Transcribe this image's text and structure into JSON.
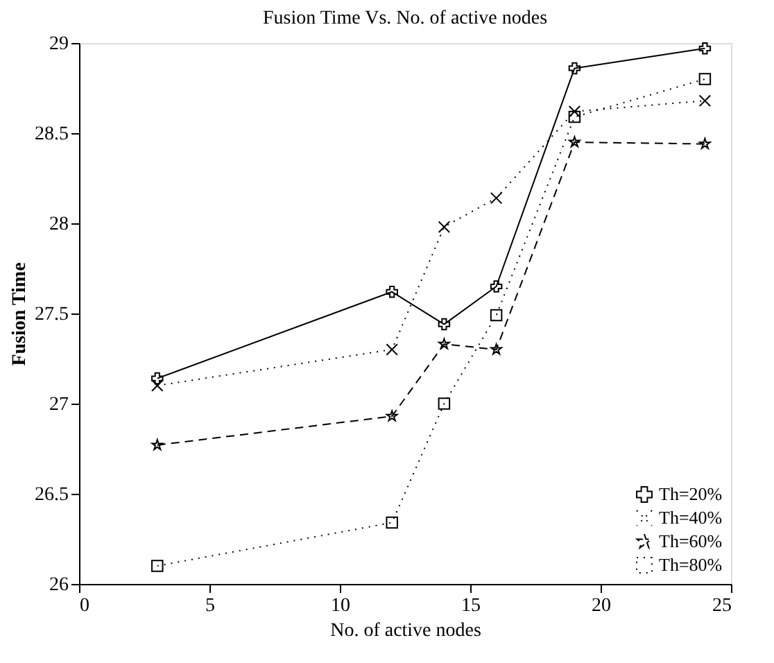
{
  "chart_data": {
    "type": "line",
    "title": "Fusion Time Vs. No. of active nodes",
    "xlabel": "No. of active nodes",
    "ylabel": "Fusion Time",
    "series": [
      {
        "name": "Th=20%",
        "color": "#000000",
        "marker": "cross",
        "line_style": "solid",
        "x": [
          3,
          12,
          14,
          16,
          19,
          24
        ],
        "values": [
          27.14,
          27.62,
          27.44,
          27.65,
          28.86,
          28.97
        ]
      },
      {
        "name": "Th=40%",
        "color": "#000000",
        "marker": "x",
        "line_style": "dotted",
        "x": [
          3,
          12,
          14,
          16,
          19,
          24
        ],
        "values": [
          27.1,
          27.3,
          27.98,
          28.14,
          28.62,
          28.68
        ]
      },
      {
        "name": "Th=60%",
        "color": "#000000",
        "marker": "star",
        "line_style": "dashed",
        "x": [
          3,
          12,
          14,
          16,
          19,
          24
        ],
        "values": [
          26.77,
          26.93,
          27.33,
          27.3,
          28.45,
          28.44
        ]
      },
      {
        "name": "Th=80%",
        "color": "#000000",
        "marker": "square",
        "line_style": "dotted",
        "x": [
          3,
          12,
          14,
          16,
          19,
          24
        ],
        "values": [
          26.1,
          26.34,
          27.0,
          27.49,
          28.59,
          28.8
        ]
      }
    ],
    "xlim": [
      0,
      25
    ],
    "xticks": [
      0,
      5,
      10,
      15,
      20,
      25
    ],
    "ylim": [
      26,
      29
    ],
    "yticks": [
      26,
      26.5,
      27,
      27.5,
      28,
      28.5,
      29
    ],
    "grid": false,
    "legend": "bottom right"
  }
}
